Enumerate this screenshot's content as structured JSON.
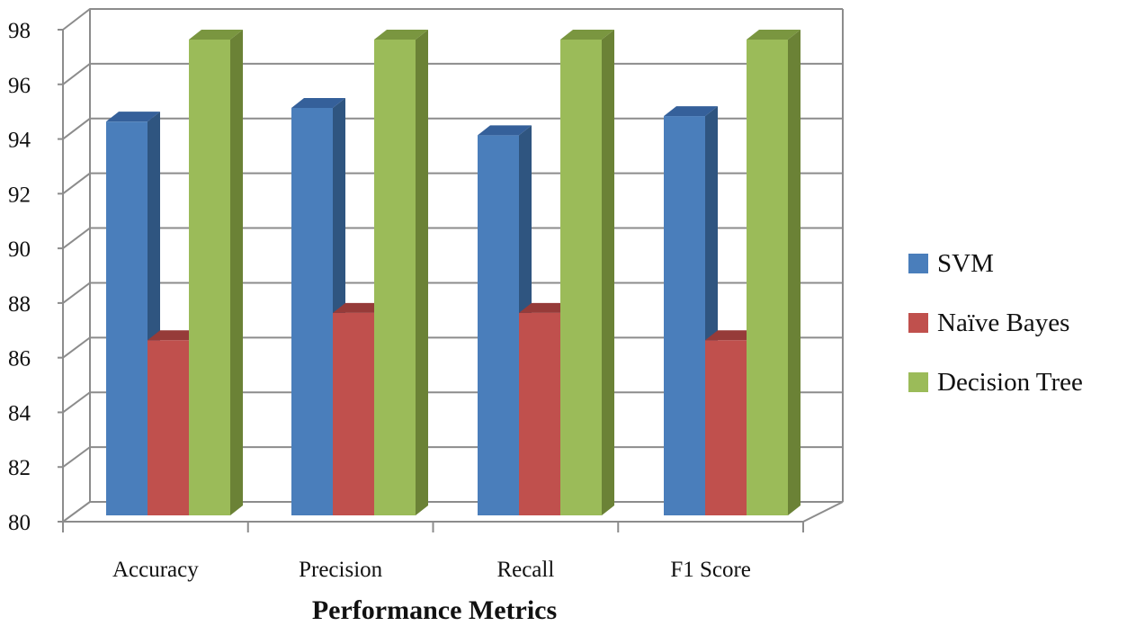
{
  "chart_data": {
    "type": "bar",
    "xlabel": "Performance Metrics",
    "ylabel": "",
    "categories": [
      "Accuracy",
      "Precision",
      "Recall",
      "F1 Score"
    ],
    "ylim": [
      80,
      98
    ],
    "yticks": [
      80,
      82,
      84,
      86,
      88,
      90,
      92,
      94,
      96,
      98
    ],
    "grid": true,
    "legend_position": "right",
    "series": [
      {
        "name": "SVM",
        "values": [
          95,
          95.5,
          94.5,
          95.2
        ],
        "color": "#4a7ebb",
        "side_color": "#2f5580",
        "top_color": "#35609a"
      },
      {
        "name": "Naïve Bayes",
        "values": [
          87,
          88,
          88,
          87
        ],
        "color": "#c0504d",
        "side_color": "#8c3432",
        "top_color": "#963b39"
      },
      {
        "name": "Decision Tree",
        "values": [
          98,
          98,
          98,
          98
        ],
        "color": "#9bbb59",
        "side_color": "#6b8236",
        "top_color": "#7a9640"
      }
    ]
  }
}
